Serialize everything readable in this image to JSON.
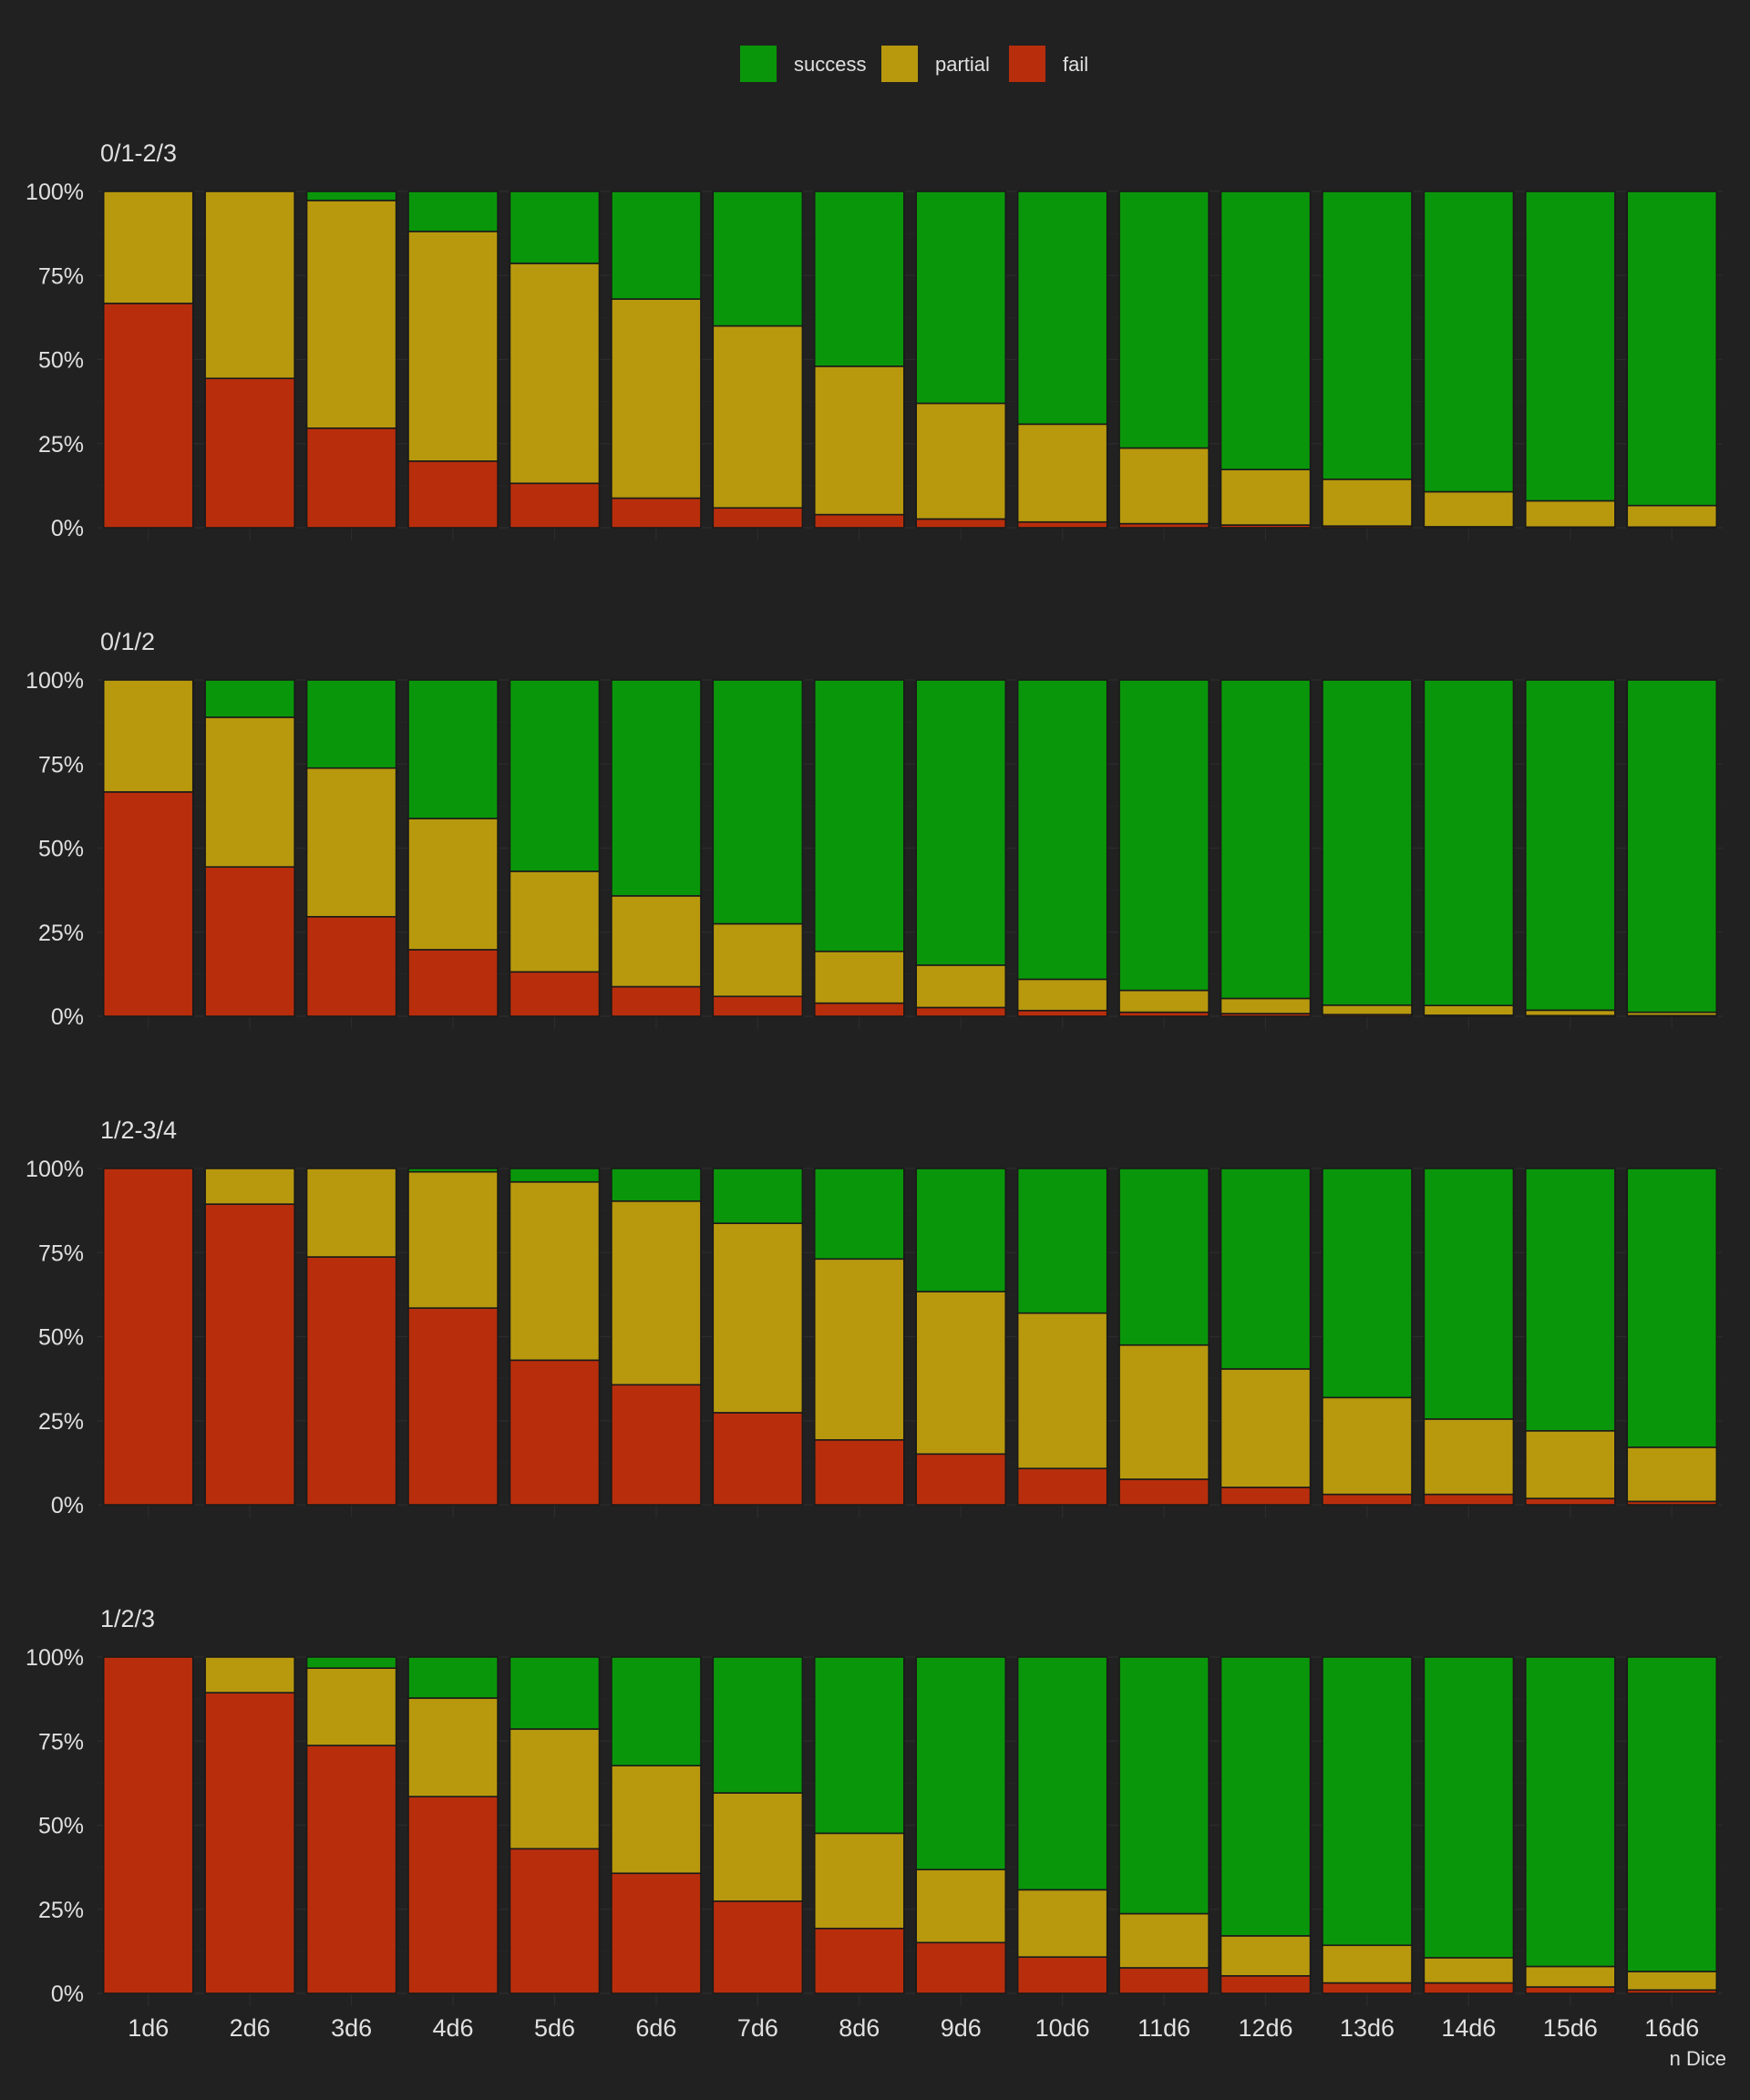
{
  "chart_data": {
    "type": "bar",
    "stacked": true,
    "normalized": true,
    "xlabel": "n Dice",
    "categories": [
      "1d6",
      "2d6",
      "3d6",
      "4d6",
      "5d6",
      "6d6",
      "7d6",
      "8d6",
      "9d6",
      "10d6",
      "11d6",
      "12d6",
      "13d6",
      "14d6",
      "15d6",
      "16d6"
    ],
    "y_ticks": [
      "0%",
      "25%",
      "50%",
      "75%",
      "100%"
    ],
    "ylim": [
      0,
      100
    ],
    "legend": {
      "position": "top",
      "entries": [
        {
          "name": "success",
          "color": "#0a960a"
        },
        {
          "name": "partial",
          "color": "#b8990e"
        },
        {
          "name": "fail",
          "color": "#b82e0c"
        }
      ]
    },
    "panels": [
      {
        "title": "0/1-2/3",
        "fail": [
          66.7,
          44.4,
          29.6,
          19.8,
          13.2,
          8.8,
          5.9,
          3.9,
          2.6,
          1.7,
          1.2,
          0.8,
          0.5,
          0.3,
          0.2,
          0.2
        ],
        "partial": [
          33.3,
          55.6,
          67.7,
          68.3,
          65.4,
          59.2,
          54.1,
          44.1,
          34.4,
          29.1,
          22.5,
          16.5,
          13.9,
          10.4,
          7.8,
          6.4
        ],
        "success": [
          0.0,
          0.0,
          2.7,
          11.9,
          21.4,
          32.0,
          40.0,
          52.0,
          63.0,
          69.2,
          76.3,
          82.7,
          85.6,
          89.3,
          92.0,
          93.4
        ]
      },
      {
        "title": "0/1/2",
        "fail": [
          66.7,
          44.4,
          29.6,
          19.8,
          13.2,
          8.8,
          5.9,
          3.9,
          2.6,
          1.7,
          1.2,
          0.8,
          0.5,
          0.3,
          0.2,
          0.2
        ],
        "partial": [
          33.3,
          44.5,
          44.2,
          39.0,
          29.9,
          27.0,
          21.6,
          15.4,
          12.6,
          9.3,
          6.5,
          4.5,
          2.8,
          2.9,
          1.6,
          1.0
        ],
        "success": [
          0.0,
          11.1,
          26.2,
          41.2,
          56.9,
          64.2,
          72.5,
          80.7,
          84.8,
          89.0,
          92.3,
          94.7,
          96.7,
          96.8,
          98.2,
          98.8
        ]
      },
      {
        "title": "1/2-3/4",
        "fail": [
          100.0,
          89.4,
          73.7,
          58.5,
          43.0,
          35.7,
          27.4,
          19.3,
          15.1,
          10.8,
          7.6,
          5.2,
          3.1,
          3.1,
          1.9,
          1.0
        ],
        "partial": [
          0.0,
          10.6,
          26.3,
          40.5,
          53.0,
          54.6,
          56.3,
          53.8,
          48.3,
          46.2,
          39.9,
          35.2,
          28.8,
          22.4,
          20.1,
          16.1
        ],
        "success": [
          0.0,
          0.0,
          0.0,
          1.0,
          4.0,
          9.7,
          16.3,
          26.9,
          36.6,
          43.0,
          52.5,
          59.6,
          68.1,
          74.5,
          78.0,
          82.9
        ]
      },
      {
        "title": "1/2/3",
        "fail": [
          100.0,
          89.4,
          73.7,
          58.5,
          43.0,
          35.7,
          27.4,
          19.3,
          15.1,
          10.8,
          7.6,
          5.2,
          3.1,
          3.1,
          1.9,
          1.0
        ],
        "partial": [
          0.0,
          10.6,
          23.0,
          29.3,
          35.6,
          32.0,
          32.2,
          28.3,
          21.7,
          20.0,
          16.1,
          11.9,
          11.2,
          7.5,
          6.1,
          5.5
        ],
        "success": [
          0.0,
          0.0,
          3.3,
          12.2,
          21.4,
          32.3,
          40.4,
          52.4,
          63.2,
          69.2,
          76.3,
          82.9,
          85.7,
          89.4,
          92.0,
          93.5
        ]
      }
    ]
  }
}
